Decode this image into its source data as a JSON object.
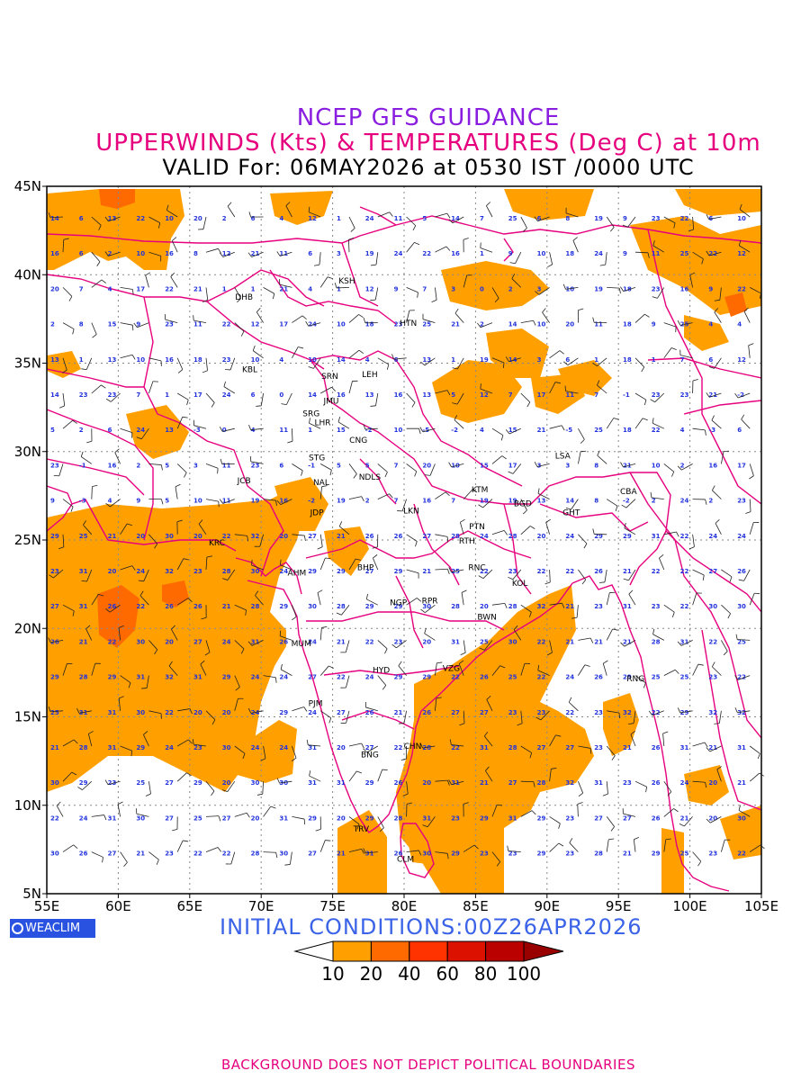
{
  "title": {
    "line1": "NCEP GFS GUIDANCE",
    "line2": "UPPERWINDS (Kts) & TEMPERATURES (Deg C) at 10m",
    "line3": "VALID For: 06MAY2026 at 0530 IST /0000 UTC"
  },
  "axes": {
    "x_ticks": [
      "55E",
      "60E",
      "65E",
      "70E",
      "75E",
      "80E",
      "85E",
      "90E",
      "95E",
      "100E",
      "105E"
    ],
    "y_ticks": [
      "45N",
      "40N",
      "35N",
      "30N",
      "25N",
      "20N",
      "15N",
      "10N",
      "5N"
    ]
  },
  "branding": {
    "label": "WEACLIM"
  },
  "initial_conditions": "INITIAL  CONDITIONS:00Z26APR2026",
  "colorbar": {
    "labels": [
      "10",
      "20",
      "40",
      "60",
      "80",
      "100"
    ],
    "colors": [
      "#ffffff",
      "#ff9f00",
      "#ff6a00",
      "#ff3300",
      "#dd1100",
      "#bb0000",
      "#990000"
    ]
  },
  "footer": "BACKGROUND DOES NOT DEPICT POLITICAL BOUNDARIES",
  "cities": [
    {
      "name": "KSH",
      "lon": 76.0,
      "lat": 39.5
    },
    {
      "name": "DHB",
      "lon": 68.8,
      "lat": 38.6
    },
    {
      "name": "HTN",
      "lon": 80.3,
      "lat": 37.1
    },
    {
      "name": "KBL",
      "lon": 69.2,
      "lat": 34.5
    },
    {
      "name": "SRN",
      "lon": 74.8,
      "lat": 34.1
    },
    {
      "name": "LEH",
      "lon": 77.6,
      "lat": 34.2
    },
    {
      "name": "JMU",
      "lon": 74.9,
      "lat": 32.7
    },
    {
      "name": "SRG",
      "lon": 73.5,
      "lat": 32.0
    },
    {
      "name": "LHR",
      "lon": 74.3,
      "lat": 31.5
    },
    {
      "name": "CNG",
      "lon": 76.8,
      "lat": 30.5
    },
    {
      "name": "LSA",
      "lon": 91.1,
      "lat": 29.6
    },
    {
      "name": "STG",
      "lon": 73.9,
      "lat": 29.5
    },
    {
      "name": "JCB",
      "lon": 68.8,
      "lat": 28.2
    },
    {
      "name": "NAL",
      "lon": 74.2,
      "lat": 28.1
    },
    {
      "name": "NDLS",
      "lon": 77.6,
      "lat": 28.4
    },
    {
      "name": "KTM",
      "lon": 85.3,
      "lat": 27.7
    },
    {
      "name": "CBA",
      "lon": 95.7,
      "lat": 27.6
    },
    {
      "name": "BGD",
      "lon": 88.3,
      "lat": 26.9
    },
    {
      "name": "GHT",
      "lon": 91.7,
      "lat": 26.4
    },
    {
      "name": "JDP",
      "lon": 73.9,
      "lat": 26.4
    },
    {
      "name": "LKN",
      "lon": 80.5,
      "lat": 26.5
    },
    {
      "name": "PTN",
      "lon": 85.1,
      "lat": 25.6
    },
    {
      "name": "KRC",
      "lon": 66.9,
      "lat": 24.7
    },
    {
      "name": "RTH",
      "lon": 84.4,
      "lat": 24.8
    },
    {
      "name": "AHM",
      "lon": 72.5,
      "lat": 23.0
    },
    {
      "name": "BHP",
      "lon": 77.3,
      "lat": 23.3
    },
    {
      "name": "RNC",
      "lon": 85.1,
      "lat": 23.3
    },
    {
      "name": "KOL",
      "lon": 88.1,
      "lat": 22.4
    },
    {
      "name": "NGP",
      "lon": 79.6,
      "lat": 21.3
    },
    {
      "name": "RPR",
      "lon": 81.8,
      "lat": 21.4
    },
    {
      "name": "BWN",
      "lon": 85.8,
      "lat": 20.5
    },
    {
      "name": "MUM",
      "lon": 72.8,
      "lat": 19.0
    },
    {
      "name": "HYD",
      "lon": 78.4,
      "lat": 17.5
    },
    {
      "name": "VZG",
      "lon": 83.3,
      "lat": 17.6
    },
    {
      "name": "RNG",
      "lon": 96.2,
      "lat": 17.0
    },
    {
      "name": "PJM",
      "lon": 73.8,
      "lat": 15.6
    },
    {
      "name": "CHN",
      "lon": 80.6,
      "lat": 13.2
    },
    {
      "name": "BNG",
      "lon": 77.6,
      "lat": 12.7
    },
    {
      "name": "TRV",
      "lon": 77.0,
      "lat": 8.5
    },
    {
      "name": "CLM",
      "lon": 80.1,
      "lat": 6.8
    }
  ]
}
